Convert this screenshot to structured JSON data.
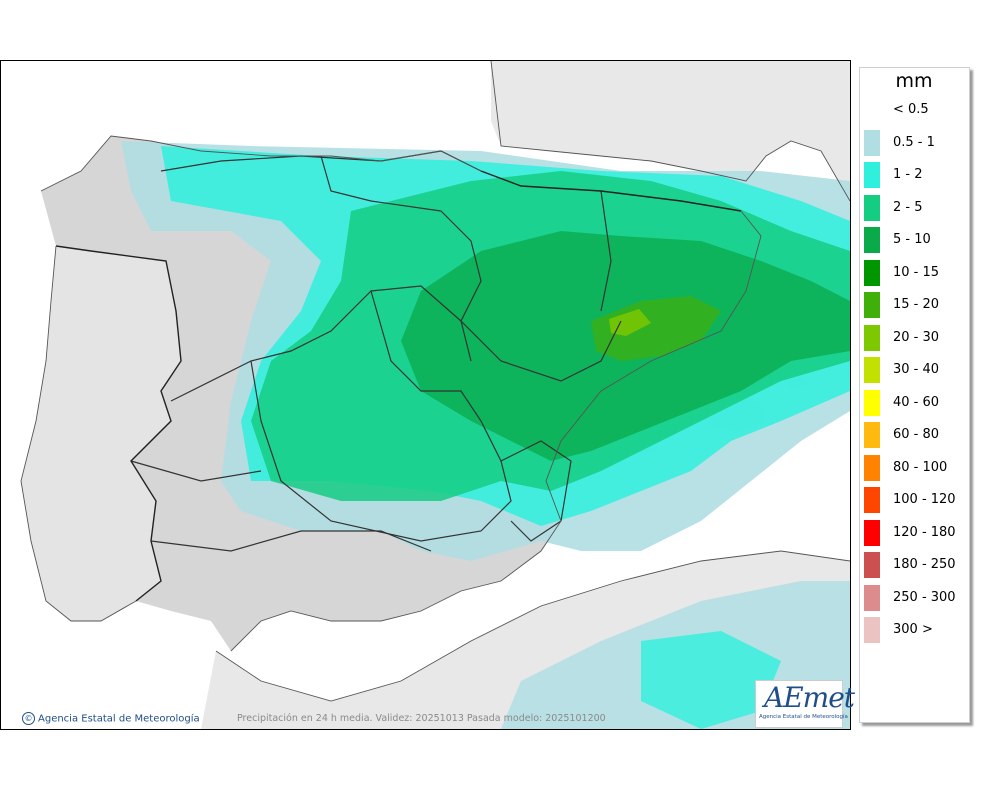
{
  "legend": {
    "unit": "mm",
    "items": [
      {
        "label": "< 0.5",
        "color": "#ffffff"
      },
      {
        "label": "0.5 - 1",
        "color": "#b0dee3"
      },
      {
        "label": "1 - 2",
        "color": "#2ef0dc"
      },
      {
        "label": "2 - 5",
        "color": "#14cd82"
      },
      {
        "label": "5 - 10",
        "color": "#0aaa4b"
      },
      {
        "label": "10 - 15",
        "color": "#009600"
      },
      {
        "label": "15 - 20",
        "color": "#41af0a"
      },
      {
        "label": "20 - 30",
        "color": "#7dc800"
      },
      {
        "label": "30 - 40",
        "color": "#c3e100"
      },
      {
        "label": "40 - 60",
        "color": "#ffff00"
      },
      {
        "label": "60 - 80",
        "color": "#ffb90f"
      },
      {
        "label": "80 - 100",
        "color": "#ff8200"
      },
      {
        "label": "100 - 120",
        "color": "#ff4600"
      },
      {
        "label": "120 - 180",
        "color": "#ff0000"
      },
      {
        "label": "180 - 250",
        "color": "#cd5050"
      },
      {
        "label": "250 - 300",
        "color": "#dc8c8c"
      },
      {
        "label": "300 >",
        "color": "#ebc3c3"
      }
    ]
  },
  "credit": "Agencia Estatal de Meteorología",
  "caption": "Precipitación en 24 h media. Validez: 20251013 Pasada modelo: 2025101200",
  "logo": {
    "text": "AEmet",
    "subtitle": "Agencia Estatal de Meteorología"
  },
  "colors": {
    "sea": "#ffffff",
    "land_foreign": "#e8e8e8",
    "land_spain": "#d6d6d6",
    "borders": "#333333"
  }
}
